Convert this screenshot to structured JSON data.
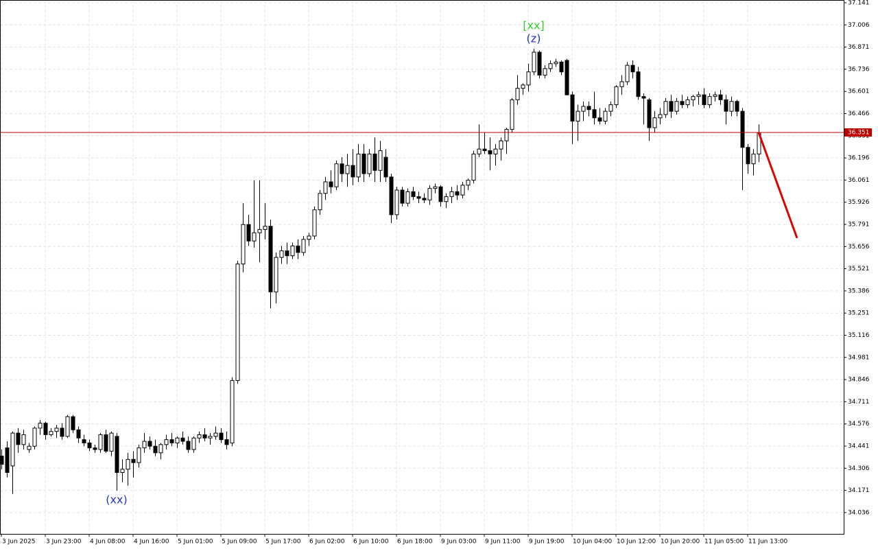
{
  "chart_data": {
    "type": "candlestick",
    "ylim": [
      33.906,
      37.141
    ],
    "yticks": [
      37.141,
      37.006,
      36.871,
      36.736,
      36.601,
      36.466,
      36.331,
      36.196,
      36.061,
      35.926,
      35.791,
      35.656,
      35.521,
      35.386,
      35.251,
      35.116,
      34.981,
      34.846,
      34.711,
      34.576,
      34.441,
      34.306,
      34.171,
      34.036
    ],
    "grid": true,
    "up_color": "#ffffff",
    "down_color": "#000000",
    "current_price": 36.351,
    "current_price_color": "#c00000",
    "forecast": [
      36.351,
      35.708
    ],
    "forecast_color": "#e00000",
    "annotations": [
      {
        "text": "(xx)",
        "candle": 21,
        "color": "#2233cc",
        "position": "below"
      },
      {
        "text": "(z)",
        "candle": 97,
        "color": "#2233cc",
        "position": "above"
      },
      {
        "text": "[xx]",
        "candle": 97,
        "color": "#33cc33",
        "position": "above"
      }
    ],
    "categories": [
      "3 Jun 2025",
      null,
      null,
      null,
      null,
      null,
      null,
      null,
      "3 Jun 23:00",
      null,
      null,
      null,
      null,
      null,
      null,
      null,
      "4 Jun 08:00",
      null,
      null,
      null,
      null,
      null,
      null,
      null,
      "4 Jun 16:00",
      null,
      null,
      null,
      null,
      null,
      null,
      null,
      "5 Jun 01:00",
      null,
      null,
      null,
      null,
      null,
      null,
      null,
      "5 Jun 09:00",
      null,
      null,
      null,
      null,
      null,
      null,
      null,
      "5 Jun 17:00",
      null,
      null,
      null,
      null,
      null,
      null,
      null,
      "6 Jun 02:00",
      null,
      null,
      null,
      null,
      null,
      null,
      null,
      "6 Jun 10:00",
      null,
      null,
      null,
      null,
      null,
      null,
      null,
      "6 Jun 18:00",
      null,
      null,
      null,
      null,
      null,
      null,
      null,
      "9 Jun 03:00",
      null,
      null,
      null,
      null,
      null,
      null,
      null,
      "9 Jun 11:00",
      null,
      null,
      null,
      null,
      null,
      null,
      null,
      "9 Jun 19:00",
      null,
      null,
      null,
      null,
      null,
      null,
      null,
      "10 Jun 04:00",
      null,
      null,
      null,
      null,
      null,
      null,
      null,
      "10 Jun 12:00",
      null,
      null,
      null,
      null,
      null,
      null,
      null,
      "10 Jun 20:00",
      null,
      null,
      null,
      null,
      null,
      null,
      null,
      "11 Jun 05:00",
      null,
      null,
      null,
      null,
      null,
      null,
      null,
      "11 Jun 13:00",
      null,
      null
    ],
    "ohlc": [
      [
        34.38,
        34.42,
        34.3,
        34.33
      ],
      [
        34.43,
        34.47,
        34.25,
        34.28
      ],
      [
        34.32,
        34.53,
        34.15,
        34.52
      ],
      [
        34.52,
        34.55,
        34.4,
        34.45
      ],
      [
        34.45,
        34.54,
        34.42,
        34.51
      ],
      [
        34.42,
        34.46,
        34.4,
        34.44
      ],
      [
        34.44,
        34.56,
        34.42,
        34.55
      ],
      [
        34.55,
        34.6,
        34.51,
        34.58
      ],
      [
        34.58,
        34.59,
        34.48,
        34.51
      ],
      [
        34.51,
        34.55,
        34.5,
        34.53
      ],
      [
        34.53,
        34.57,
        34.49,
        34.55
      ],
      [
        34.55,
        34.58,
        34.48,
        34.5
      ],
      [
        34.5,
        34.63,
        34.49,
        34.62
      ],
      [
        34.62,
        34.63,
        34.52,
        34.54
      ],
      [
        34.54,
        34.56,
        34.46,
        34.49
      ],
      [
        34.48,
        34.51,
        34.44,
        34.46
      ],
      [
        34.46,
        34.48,
        34.41,
        34.43
      ],
      [
        34.43,
        34.45,
        34.4,
        34.42
      ],
      [
        34.42,
        34.52,
        34.4,
        34.51
      ],
      [
        34.51,
        34.54,
        34.4,
        34.41
      ],
      [
        34.41,
        34.53,
        34.38,
        34.52
      ],
      [
        34.5,
        34.52,
        34.17,
        34.28
      ],
      [
        34.28,
        34.36,
        34.22,
        34.3
      ],
      [
        34.3,
        34.4,
        34.2,
        34.36
      ],
      [
        34.36,
        34.41,
        34.25,
        34.34
      ],
      [
        34.34,
        34.45,
        34.31,
        34.43
      ],
      [
        34.43,
        34.52,
        34.4,
        34.47
      ],
      [
        34.47,
        34.5,
        34.42,
        34.44
      ],
      [
        34.44,
        34.48,
        34.38,
        34.4
      ],
      [
        34.4,
        34.46,
        34.36,
        34.45
      ],
      [
        34.45,
        34.51,
        34.42,
        34.48
      ],
      [
        34.48,
        34.52,
        34.44,
        34.46
      ],
      [
        34.46,
        34.5,
        34.43,
        34.49
      ],
      [
        34.49,
        34.53,
        34.45,
        34.47
      ],
      [
        34.47,
        34.5,
        34.4,
        34.42
      ],
      [
        34.42,
        34.5,
        34.4,
        34.49
      ],
      [
        34.49,
        34.53,
        34.46,
        34.51
      ],
      [
        34.51,
        34.55,
        34.47,
        34.49
      ],
      [
        34.49,
        34.52,
        34.45,
        34.5
      ],
      [
        34.5,
        34.56,
        34.48,
        34.52
      ],
      [
        34.52,
        34.55,
        34.46,
        34.48
      ],
      [
        34.48,
        34.53,
        34.42,
        34.45
      ],
      [
        34.46,
        34.86,
        34.44,
        34.84
      ],
      [
        34.84,
        35.57,
        34.82,
        35.55
      ],
      [
        35.55,
        35.92,
        35.5,
        35.79
      ],
      [
        35.79,
        35.85,
        35.66,
        35.69
      ],
      [
        35.69,
        36.06,
        35.65,
        35.74
      ],
      [
        35.74,
        36.06,
        35.56,
        35.76
      ],
      [
        35.76,
        35.92,
        35.7,
        35.78
      ],
      [
        35.78,
        35.82,
        35.28,
        35.38
      ],
      [
        35.38,
        35.62,
        35.31,
        35.59
      ],
      [
        35.59,
        35.66,
        35.55,
        35.63
      ],
      [
        35.63,
        35.68,
        35.55,
        35.6
      ],
      [
        35.6,
        35.68,
        35.58,
        35.66
      ],
      [
        35.66,
        35.7,
        35.58,
        35.62
      ],
      [
        35.62,
        35.72,
        35.6,
        35.7
      ],
      [
        35.7,
        35.74,
        35.66,
        35.72
      ],
      [
        35.72,
        35.9,
        35.7,
        35.88
      ],
      [
        35.88,
        36.0,
        35.85,
        35.98
      ],
      [
        35.98,
        36.08,
        35.94,
        36.05
      ],
      [
        36.05,
        36.12,
        35.98,
        36.02
      ],
      [
        36.02,
        36.18,
        36.0,
        36.16
      ],
      [
        36.16,
        36.2,
        36.05,
        36.1
      ],
      [
        36.1,
        36.22,
        36.02,
        36.15
      ],
      [
        36.15,
        36.25,
        36.03,
        36.08
      ],
      [
        36.08,
        36.28,
        36.05,
        36.22
      ],
      [
        36.22,
        36.28,
        36.05,
        36.1
      ],
      [
        36.1,
        36.25,
        36.08,
        36.22
      ],
      [
        36.22,
        36.32,
        36.05,
        36.12
      ],
      [
        36.12,
        36.3,
        36.05,
        36.24
      ],
      [
        36.2,
        36.25,
        36.05,
        36.08
      ],
      [
        36.08,
        36.1,
        35.8,
        35.85
      ],
      [
        35.85,
        36.02,
        35.82,
        36.0
      ],
      [
        36.0,
        36.02,
        35.9,
        35.92
      ],
      [
        35.92,
        36.01,
        35.9,
        35.99
      ],
      [
        35.99,
        36.02,
        35.94,
        35.96
      ],
      [
        35.96,
        35.99,
        35.92,
        35.95
      ],
      [
        35.95,
        35.98,
        35.92,
        35.94
      ],
      [
        35.94,
        36.03,
        35.91,
        36.01
      ],
      [
        36.01,
        36.04,
        35.98,
        36.02
      ],
      [
        36.02,
        36.03,
        35.9,
        35.93
      ],
      [
        35.93,
        35.98,
        35.89,
        35.96
      ],
      [
        35.96,
        36.02,
        35.92,
        35.99
      ],
      [
        35.99,
        36.03,
        35.94,
        35.97
      ],
      [
        35.97,
        36.05,
        35.95,
        36.03
      ],
      [
        36.03,
        36.07,
        36.0,
        36.06
      ],
      [
        36.06,
        36.24,
        36.04,
        36.22
      ],
      [
        36.22,
        36.4,
        36.2,
        36.25
      ],
      [
        36.25,
        36.35,
        36.22,
        36.24
      ],
      [
        36.24,
        36.32,
        36.12,
        36.22
      ],
      [
        36.22,
        36.28,
        36.15,
        36.25
      ],
      [
        36.25,
        36.32,
        36.18,
        36.3
      ],
      [
        36.3,
        36.38,
        36.22,
        36.37
      ],
      [
        36.37,
        36.56,
        36.35,
        36.55
      ],
      [
        36.55,
        36.7,
        36.52,
        36.62
      ],
      [
        36.62,
        36.65,
        36.58,
        36.64
      ],
      [
        36.64,
        36.77,
        36.6,
        36.72
      ],
      [
        36.72,
        36.86,
        36.7,
        36.84
      ],
      [
        36.84,
        36.85,
        36.68,
        36.7
      ],
      [
        36.7,
        36.76,
        36.68,
        36.74
      ],
      [
        36.74,
        36.79,
        36.72,
        36.77
      ],
      [
        36.77,
        36.8,
        36.75,
        36.78
      ],
      [
        36.78,
        36.79,
        36.7,
        36.72
      ],
      [
        36.79,
        36.8,
        36.58,
        36.58
      ],
      [
        36.58,
        36.6,
        36.28,
        36.42
      ],
      [
        36.42,
        36.52,
        36.3,
        36.48
      ],
      [
        36.48,
        36.54,
        36.42,
        36.51
      ],
      [
        36.51,
        36.54,
        36.45,
        36.49
      ],
      [
        36.49,
        36.6,
        36.4,
        36.44
      ],
      [
        36.44,
        36.5,
        36.4,
        36.42
      ],
      [
        36.42,
        36.5,
        36.4,
        36.48
      ],
      [
        36.48,
        36.54,
        36.45,
        36.52
      ],
      [
        36.52,
        36.64,
        36.5,
        36.63
      ],
      [
        36.63,
        36.7,
        36.58,
        36.66
      ],
      [
        36.66,
        36.78,
        36.64,
        36.76
      ],
      [
        36.76,
        36.79,
        36.68,
        36.72
      ],
      [
        36.72,
        36.75,
        36.55,
        36.57
      ],
      [
        36.57,
        36.59,
        36.4,
        36.56
      ],
      [
        36.55,
        36.56,
        36.3,
        36.38
      ],
      [
        36.38,
        36.48,
        36.35,
        36.44
      ],
      [
        36.44,
        36.5,
        36.4,
        36.46
      ],
      [
        36.46,
        36.56,
        36.44,
        36.54
      ],
      [
        36.54,
        36.58,
        36.44,
        36.48
      ],
      [
        36.48,
        36.56,
        36.46,
        36.54
      ],
      [
        36.54,
        36.58,
        36.5,
        36.52
      ],
      [
        36.52,
        36.57,
        36.5,
        36.55
      ],
      [
        36.55,
        36.58,
        36.51,
        36.57
      ],
      [
        36.57,
        36.6,
        36.52,
        36.58
      ],
      [
        36.58,
        36.62,
        36.5,
        36.52
      ],
      [
        36.52,
        36.59,
        36.5,
        36.57
      ],
      [
        36.57,
        36.6,
        36.54,
        36.58
      ],
      [
        36.58,
        36.61,
        36.52,
        36.55
      ],
      [
        36.55,
        36.58,
        36.4,
        36.48
      ],
      [
        36.48,
        36.57,
        36.45,
        36.54
      ],
      [
        36.54,
        36.55,
        36.45,
        36.48
      ],
      [
        36.48,
        36.5,
        36.0,
        36.26
      ],
      [
        36.26,
        36.28,
        36.1,
        36.16
      ],
      [
        36.16,
        36.25,
        36.09,
        36.22
      ],
      [
        36.22,
        36.4,
        36.17,
        36.351
      ]
    ]
  }
}
